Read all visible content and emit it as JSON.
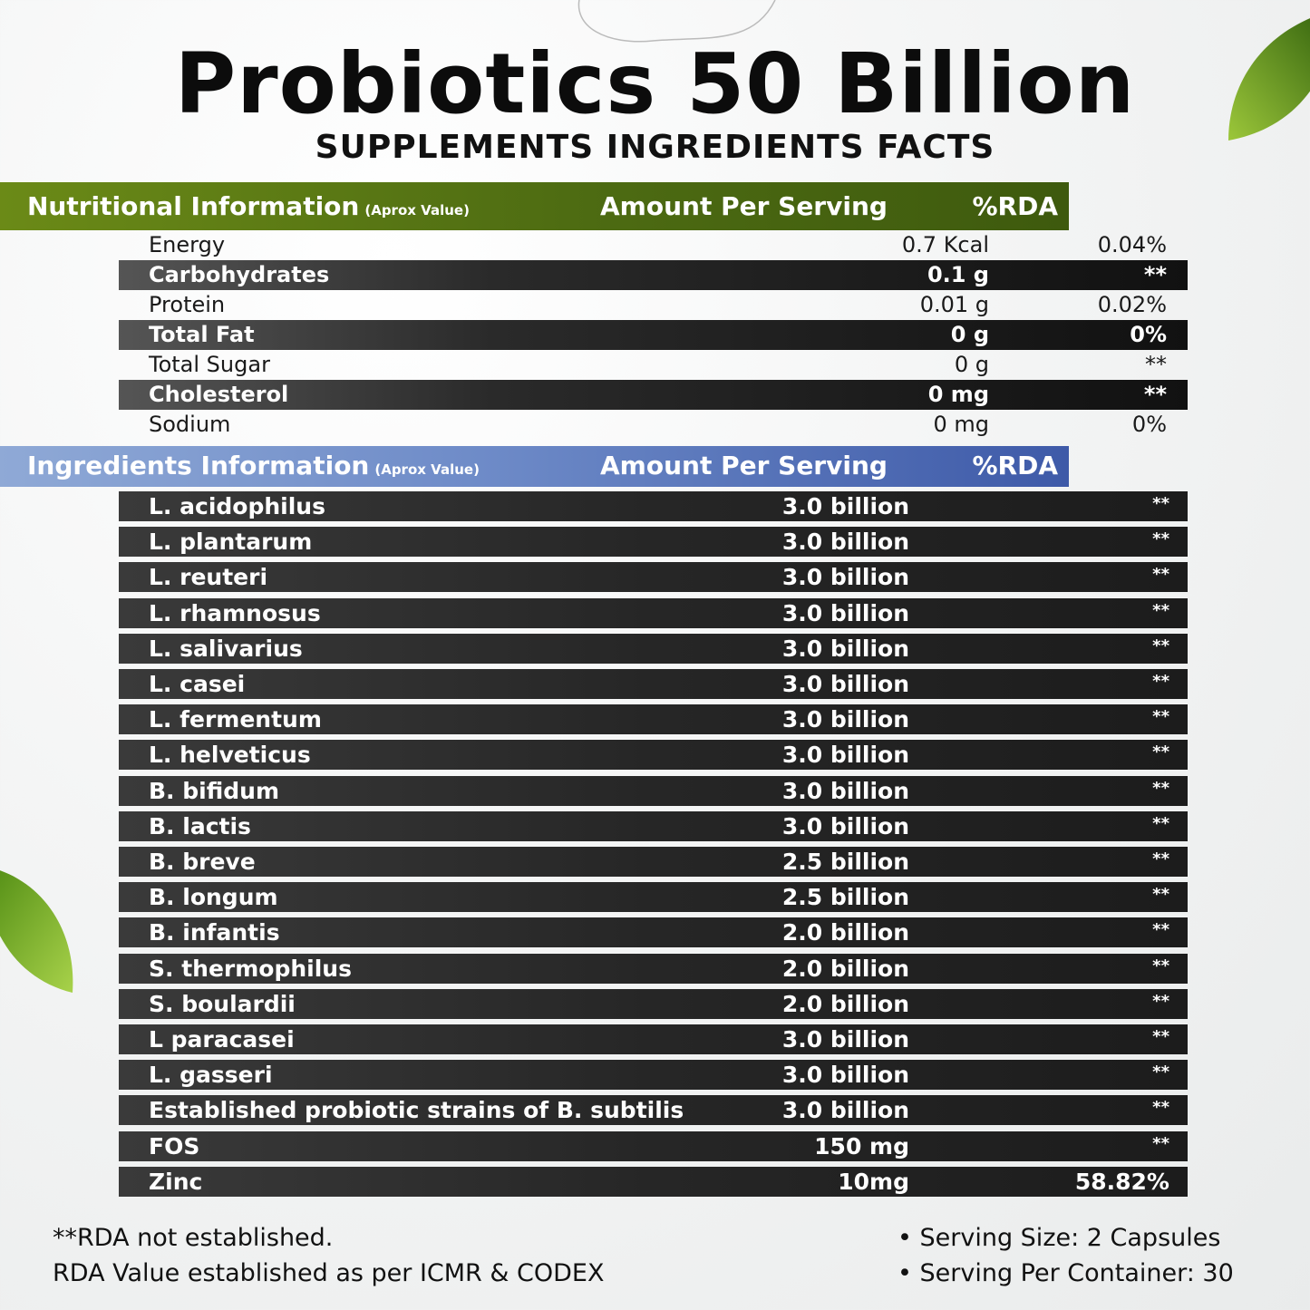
{
  "title": "Probiotics 50 Billion",
  "subtitle": "SUPPLEMENTS INGREDIENTS FACTS",
  "nutrition_header": {
    "name": "Nutritional Information",
    "note": "(Aprox Value)",
    "amount": "Amount Per Serving",
    "rda": "%RDA"
  },
  "nutrition_rows": [
    {
      "name": "Energy",
      "amount": "0.7 Kcal",
      "rda": "0.04%"
    },
    {
      "name": "Carbohydrates",
      "amount": "0.1 g",
      "rda": "**"
    },
    {
      "name": "Protein",
      "amount": "0.01 g",
      "rda": "0.02%"
    },
    {
      "name": "Total Fat",
      "amount": "0 g",
      "rda": "0%"
    },
    {
      "name": "Total Sugar",
      "amount": "0 g",
      "rda": "**"
    },
    {
      "name": "Cholesterol",
      "amount": "0 mg",
      "rda": "**"
    },
    {
      "name": "Sodium",
      "amount": "0 mg",
      "rda": "0%"
    }
  ],
  "ingredients_header": {
    "name": "Ingredients Information",
    "note": "(Aprox Value)",
    "amount": "Amount Per Serving",
    "rda": "%RDA"
  },
  "ingredient_rows": [
    {
      "name": "L. acidophilus",
      "amount": "3.0 billion",
      "rda": "**"
    },
    {
      "name": "L. plantarum",
      "amount": "3.0 billion",
      "rda": "**"
    },
    {
      "name": "L. reuteri",
      "amount": "3.0 billion",
      "rda": "**"
    },
    {
      "name": "L. rhamnosus",
      "amount": "3.0 billion",
      "rda": "**"
    },
    {
      "name": "L. salivarius",
      "amount": "3.0 billion",
      "rda": "**"
    },
    {
      "name": "L. casei",
      "amount": "3.0 billion",
      "rda": "**"
    },
    {
      "name": "L. fermentum",
      "amount": "3.0 billion",
      "rda": "**"
    },
    {
      "name": "L. helveticus",
      "amount": "3.0 billion",
      "rda": "**"
    },
    {
      "name": "B. bifidum",
      "amount": "3.0 billion",
      "rda": "**"
    },
    {
      "name": "B. lactis",
      "amount": "3.0 billion",
      "rda": "**"
    },
    {
      "name": "B. breve",
      "amount": "2.5 billion",
      "rda": "**"
    },
    {
      "name": "B. longum",
      "amount": "2.5 billion",
      "rda": "**"
    },
    {
      "name": "B. infantis",
      "amount": "2.0 billion",
      "rda": "**"
    },
    {
      "name": "S. thermophilus",
      "amount": "2.0 billion",
      "rda": "**"
    },
    {
      "name": "S. boulardii",
      "amount": "2.0 billion",
      "rda": "**"
    },
    {
      "name": "L paracasei",
      "amount": "3.0 billion",
      "rda": "**"
    },
    {
      "name": "L. gasseri",
      "amount": "3.0 billion",
      "rda": "**"
    },
    {
      "name": "Established probiotic strains of B. subtilis",
      "amount": "3.0 billion",
      "rda": "**"
    },
    {
      "name": "FOS",
      "amount": "150 mg",
      "rda": "**"
    },
    {
      "name": "Zinc",
      "amount": "10mg",
      "rda": "58.82%"
    }
  ],
  "footer": {
    "note1": "**RDA not established.",
    "note2": "RDA Value established as per ICMR & CODEX",
    "serving_size": "• Serving Size: 2 Capsules",
    "serving_per_container": "• Serving Per Container: 30"
  },
  "colors": {
    "nutrition_header": "#5a7a14",
    "ingredients_header": "#6e8bc8",
    "dark_row": "#262626",
    "leaf": "#6fa51e"
  },
  "decorations": [
    "leaf-icon",
    "leaf-icon"
  ]
}
